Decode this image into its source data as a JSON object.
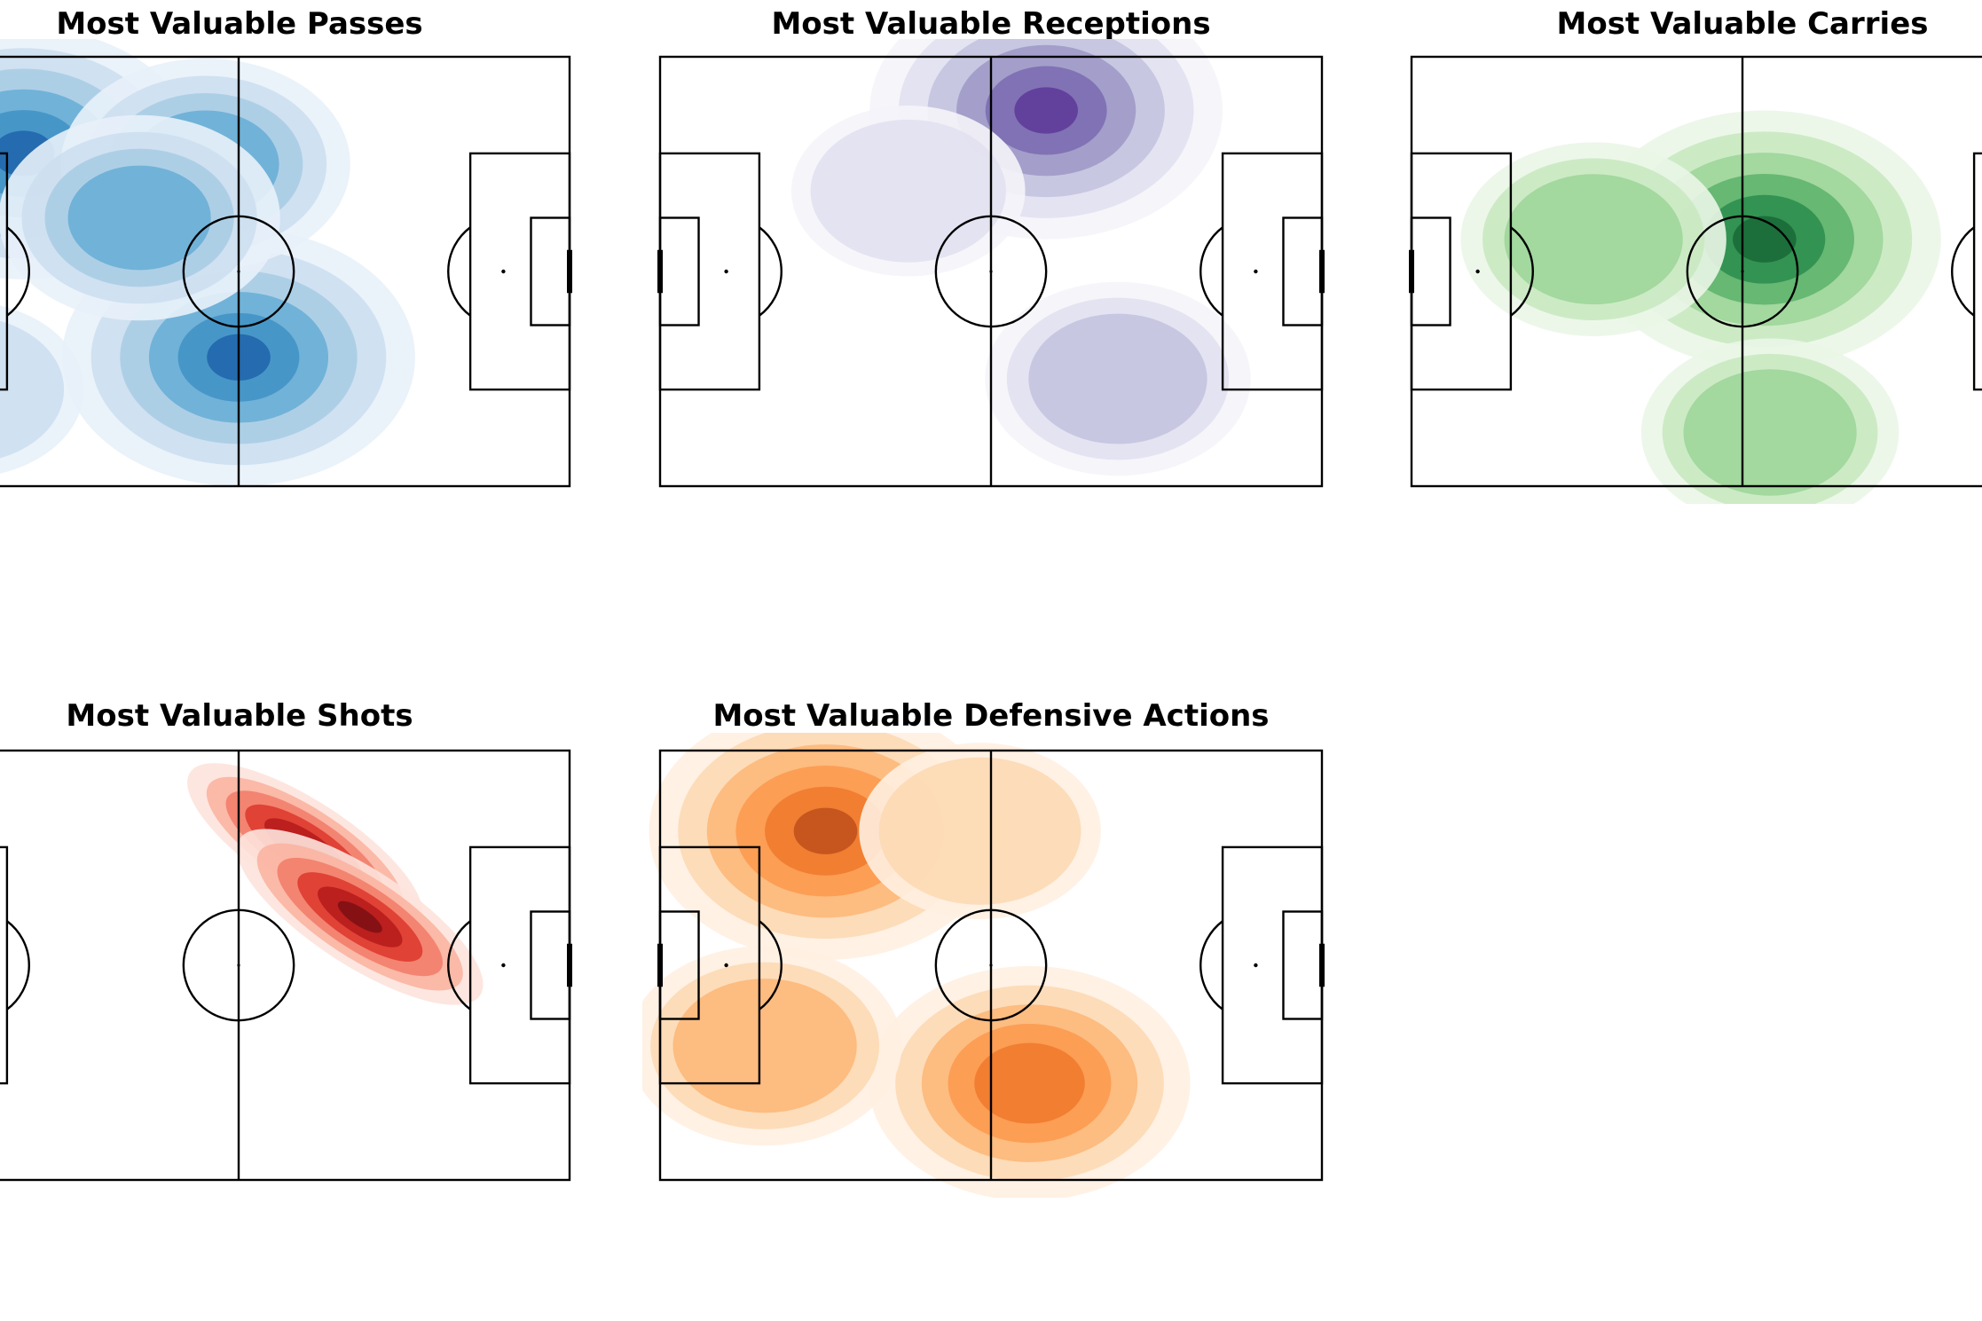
{
  "chart_data": [
    {
      "type": "heatmap",
      "title": "Most Valuable Passes",
      "colormap": "Blues",
      "colors": [
        "#e8f1fa",
        "#cddff0",
        "#a9cde4",
        "#6aaed6",
        "#4292c6",
        "#2166ac"
      ],
      "density_peaks": [
        {
          "x": 21,
          "y": 62,
          "intensity": 0.95
        },
        {
          "x": 60,
          "y": 24,
          "intensity": 1.0
        },
        {
          "x": 54,
          "y": 60,
          "intensity": 0.6
        },
        {
          "x": 42,
          "y": 50,
          "intensity": 0.55
        },
        {
          "x": 10,
          "y": 18,
          "intensity": 0.3
        }
      ]
    },
    {
      "type": "heatmap",
      "title": "Most Valuable Receptions",
      "colormap": "Purples",
      "colors": [
        "#f5f4f9",
        "#e2e1ef",
        "#c4c3e0",
        "#9e9ac8",
        "#7d6db3",
        "#5e3c99"
      ],
      "density_peaks": [
        {
          "x": 70,
          "y": 70,
          "intensity": 1.0
        },
        {
          "x": 83,
          "y": 20,
          "intensity": 0.45
        },
        {
          "x": 45,
          "y": 55,
          "intensity": 0.25
        }
      ]
    },
    {
      "type": "heatmap",
      "title": "Most Valuable Carries",
      "colormap": "Greens",
      "colors": [
        "#eaf6e7",
        "#c9e9c1",
        "#9fd69a",
        "#5fb56d",
        "#2e8f4f",
        "#1a6b37"
      ],
      "density_peaks": [
        {
          "x": 64,
          "y": 46,
          "intensity": 1.0
        },
        {
          "x": 33,
          "y": 46,
          "intensity": 0.45
        },
        {
          "x": 65,
          "y": 10,
          "intensity": 0.4
        }
      ]
    },
    {
      "type": "heatmap",
      "title": "Most Valuable Shots",
      "colormap": "Reds",
      "colors": [
        "#fde3dc",
        "#fbb4a2",
        "#f27e6a",
        "#de3b2f",
        "#b71c1c",
        "#7f0f13"
      ],
      "density_peaks": [
        {
          "x": 72,
          "y": 62,
          "intensity": 0.9
        },
        {
          "x": 82,
          "y": 49,
          "intensity": 1.0
        }
      ]
    },
    {
      "type": "heatmap",
      "title": "Most Valuable Defensive Actions",
      "colormap": "Oranges",
      "colors": [
        "#fff0e1",
        "#fdd9b4",
        "#fdb87a",
        "#fc9a4f",
        "#f07a2e",
        "#c1511d"
      ],
      "density_peaks": [
        {
          "x": 30,
          "y": 65,
          "intensity": 1.0
        },
        {
          "x": 67,
          "y": 18,
          "intensity": 0.8
        },
        {
          "x": 19,
          "y": 25,
          "intensity": 0.5
        },
        {
          "x": 58,
          "y": 65,
          "intensity": 0.3
        }
      ]
    }
  ]
}
